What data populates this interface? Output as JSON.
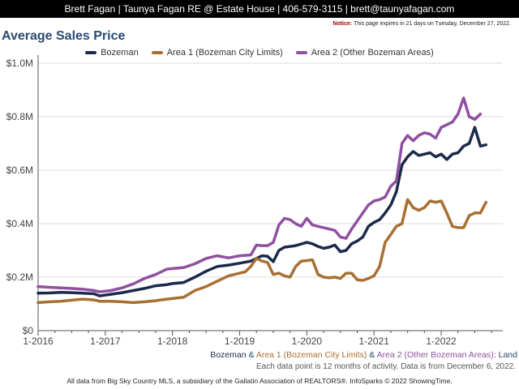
{
  "header": {
    "contact": "Brett Fagan | Taunya Fagan RE @ Estate House | 406-579-3115 | brett@taunyafagan.com"
  },
  "notice": {
    "label": "Notice:",
    "text": "This page expires in 21 days on Tuesday, December 27, 2022."
  },
  "caption": {
    "s1": "Bozeman",
    "amp1": " & ",
    "s2": "Area 1 (Bozeman City Limits)",
    "amp2": " & ",
    "s3": "Area 2 (Other Bozeman Areas)",
    "tail": ": Land"
  },
  "subcaption": "Each data point is 12 months of activity. Data is from December 6, 2022.",
  "footer": "All data from Big Sky Country MLS, a subsidiary of the Gallatin Association of REALTORS®. InfoSparks © 2022 ShowingTime.",
  "colors": {
    "bozeman": "#1b2a4a",
    "area1": "#a86f32",
    "area2": "#9050a0",
    "grid": "#dddddd",
    "title": "#2a4a72"
  },
  "chart_data": {
    "type": "line",
    "title": "Average Sales Price",
    "xlabel": "",
    "ylabel": "",
    "x_unit": "months since January 2016",
    "x_tick_labels": [
      "1-2016",
      "1-2017",
      "1-2018",
      "1-2019",
      "1-2020",
      "1-2021",
      "1-2022"
    ],
    "x_tick_positions": [
      0,
      12,
      24,
      36,
      48,
      60,
      72
    ],
    "y_tick_labels": [
      "$0",
      "$0.2M",
      "$0.4M",
      "$0.6M",
      "$0.8M",
      "$1.0M"
    ],
    "y_tick_values": [
      0,
      200000,
      400000,
      600000,
      800000,
      1000000
    ],
    "ylim": [
      0,
      1000000
    ],
    "xlim": [
      0,
      83
    ],
    "grid": true,
    "legend_position": "top",
    "series": [
      {
        "name": "Bozeman",
        "color": "#1b2a4a",
        "points": [
          [
            0,
            140000
          ],
          [
            2,
            141000
          ],
          [
            4,
            143000
          ],
          [
            6,
            142000
          ],
          [
            8,
            140000
          ],
          [
            10,
            138000
          ],
          [
            11,
            130000
          ],
          [
            13,
            136000
          ],
          [
            15,
            142000
          ],
          [
            17,
            150000
          ],
          [
            19,
            158000
          ],
          [
            21,
            168000
          ],
          [
            23,
            172000
          ],
          [
            24,
            176000
          ],
          [
            26,
            180000
          ],
          [
            28,
            200000
          ],
          [
            30,
            222000
          ],
          [
            32,
            240000
          ],
          [
            34,
            245000
          ],
          [
            36,
            252000
          ],
          [
            38,
            260000
          ],
          [
            39,
            270000
          ],
          [
            40,
            280000
          ],
          [
            41,
            278000
          ],
          [
            42,
            258000
          ],
          [
            43,
            300000
          ],
          [
            44,
            312000
          ],
          [
            45,
            315000
          ],
          [
            46,
            318000
          ],
          [
            48,
            330000
          ],
          [
            49,
            325000
          ],
          [
            50,
            315000
          ],
          [
            51,
            308000
          ],
          [
            52,
            312000
          ],
          [
            53,
            320000
          ],
          [
            54,
            295000
          ],
          [
            55,
            300000
          ],
          [
            56,
            325000
          ],
          [
            57,
            335000
          ],
          [
            58,
            350000
          ],
          [
            59,
            390000
          ],
          [
            60,
            405000
          ],
          [
            61,
            415000
          ],
          [
            62,
            440000
          ],
          [
            63,
            470000
          ],
          [
            64,
            520000
          ],
          [
            65,
            620000
          ],
          [
            66,
            650000
          ],
          [
            67,
            670000
          ],
          [
            68,
            655000
          ],
          [
            69,
            660000
          ],
          [
            70,
            665000
          ],
          [
            71,
            650000
          ],
          [
            72,
            660000
          ],
          [
            73,
            640000
          ],
          [
            74,
            660000
          ],
          [
            75,
            665000
          ],
          [
            76,
            690000
          ],
          [
            77,
            700000
          ],
          [
            78,
            760000
          ],
          [
            79,
            690000
          ],
          [
            80,
            695000
          ]
        ]
      },
      {
        "name": "Area 1 (Bozeman City Limits)",
        "color": "#a86f32",
        "points": [
          [
            0,
            105000
          ],
          [
            2,
            108000
          ],
          [
            4,
            110000
          ],
          [
            6,
            114000
          ],
          [
            8,
            118000
          ],
          [
            10,
            115000
          ],
          [
            11,
            110000
          ],
          [
            13,
            110000
          ],
          [
            15,
            108000
          ],
          [
            17,
            105000
          ],
          [
            19,
            108000
          ],
          [
            21,
            112000
          ],
          [
            23,
            118000
          ],
          [
            24,
            120000
          ],
          [
            26,
            125000
          ],
          [
            28,
            150000
          ],
          [
            30,
            165000
          ],
          [
            32,
            185000
          ],
          [
            34,
            205000
          ],
          [
            36,
            215000
          ],
          [
            37,
            220000
          ],
          [
            38,
            240000
          ],
          [
            39,
            270000
          ],
          [
            40,
            260000
          ],
          [
            41,
            255000
          ],
          [
            42,
            210000
          ],
          [
            43,
            215000
          ],
          [
            44,
            205000
          ],
          [
            45,
            200000
          ],
          [
            46,
            240000
          ],
          [
            47,
            260000
          ],
          [
            48,
            262000
          ],
          [
            49,
            265000
          ],
          [
            50,
            210000
          ],
          [
            51,
            200000
          ],
          [
            52,
            198000
          ],
          [
            53,
            200000
          ],
          [
            54,
            195000
          ],
          [
            55,
            215000
          ],
          [
            56,
            215000
          ],
          [
            57,
            190000
          ],
          [
            58,
            188000
          ],
          [
            59,
            195000
          ],
          [
            60,
            205000
          ],
          [
            61,
            240000
          ],
          [
            62,
            330000
          ],
          [
            63,
            360000
          ],
          [
            64,
            390000
          ],
          [
            65,
            400000
          ],
          [
            66,
            490000
          ],
          [
            67,
            460000
          ],
          [
            68,
            450000
          ],
          [
            69,
            460000
          ],
          [
            70,
            485000
          ],
          [
            71,
            480000
          ],
          [
            72,
            485000
          ],
          [
            73,
            440000
          ],
          [
            74,
            390000
          ],
          [
            75,
            385000
          ],
          [
            76,
            385000
          ],
          [
            77,
            430000
          ],
          [
            78,
            440000
          ],
          [
            79,
            440000
          ],
          [
            80,
            480000
          ]
        ]
      },
      {
        "name": "Area 2 (Other Bozeman Areas)",
        "color": "#9050a0",
        "points": [
          [
            0,
            165000
          ],
          [
            2,
            162000
          ],
          [
            4,
            160000
          ],
          [
            6,
            158000
          ],
          [
            8,
            155000
          ],
          [
            10,
            150000
          ],
          [
            11,
            145000
          ],
          [
            13,
            150000
          ],
          [
            15,
            160000
          ],
          [
            17,
            175000
          ],
          [
            19,
            195000
          ],
          [
            21,
            210000
          ],
          [
            23,
            230000
          ],
          [
            24,
            232000
          ],
          [
            26,
            236000
          ],
          [
            28,
            250000
          ],
          [
            30,
            270000
          ],
          [
            32,
            280000
          ],
          [
            34,
            272000
          ],
          [
            36,
            280000
          ],
          [
            38,
            283000
          ],
          [
            39,
            320000
          ],
          [
            40,
            318000
          ],
          [
            41,
            318000
          ],
          [
            42,
            330000
          ],
          [
            43,
            395000
          ],
          [
            44,
            420000
          ],
          [
            45,
            415000
          ],
          [
            46,
            400000
          ],
          [
            47,
            390000
          ],
          [
            48,
            420000
          ],
          [
            49,
            395000
          ],
          [
            50,
            390000
          ],
          [
            51,
            385000
          ],
          [
            52,
            380000
          ],
          [
            53,
            375000
          ],
          [
            54,
            350000
          ],
          [
            55,
            345000
          ],
          [
            56,
            380000
          ],
          [
            57,
            410000
          ],
          [
            58,
            440000
          ],
          [
            59,
            470000
          ],
          [
            60,
            485000
          ],
          [
            61,
            490000
          ],
          [
            62,
            500000
          ],
          [
            63,
            540000
          ],
          [
            64,
            560000
          ],
          [
            65,
            700000
          ],
          [
            66,
            730000
          ],
          [
            67,
            710000
          ],
          [
            68,
            730000
          ],
          [
            69,
            740000
          ],
          [
            70,
            735000
          ],
          [
            71,
            720000
          ],
          [
            72,
            760000
          ],
          [
            73,
            770000
          ],
          [
            74,
            780000
          ],
          [
            75,
            810000
          ],
          [
            76,
            870000
          ],
          [
            77,
            800000
          ],
          [
            78,
            790000
          ],
          [
            79,
            810000
          ]
        ]
      }
    ]
  }
}
